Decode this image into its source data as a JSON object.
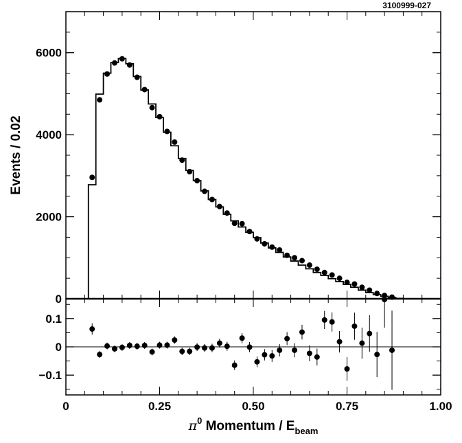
{
  "figure_id": "3100999-027",
  "chart_data": [
    {
      "type": "line",
      "xlabel": "π⁰ Momentum / E_beam",
      "ylabel": "Events / 0.02",
      "xlim": [
        0,
        1.0
      ],
      "ylim": [
        0,
        7000
      ],
      "yticks": [
        0,
        2000,
        4000,
        6000
      ],
      "ytick_labels": [
        "0",
        "2000",
        "4000",
        "6000"
      ],
      "grid": false,
      "bin_width": 0.02,
      "series": [
        {
          "style": "step-histogram",
          "bin_edges": [
            0.06,
            0.08,
            0.1,
            0.12,
            0.14,
            0.16,
            0.18,
            0.2,
            0.22,
            0.24,
            0.26,
            0.28,
            0.3,
            0.32,
            0.34,
            0.36,
            0.38,
            0.4,
            0.42,
            0.44,
            0.46,
            0.48,
            0.5,
            0.52,
            0.54,
            0.56,
            0.58,
            0.6,
            0.62,
            0.64,
            0.66,
            0.68,
            0.7,
            0.72,
            0.74,
            0.76,
            0.78,
            0.8,
            0.82,
            0.84,
            0.86,
            0.88,
            0.9
          ],
          "values": [
            2780,
            4990,
            5500,
            5760,
            5860,
            5730,
            5420,
            5090,
            4750,
            4420,
            4060,
            3730,
            3420,
            3130,
            2880,
            2630,
            2420,
            2240,
            2060,
            1900,
            1750,
            1620,
            1490,
            1360,
            1240,
            1130,
            1020,
            920,
            820,
            730,
            640,
            570,
            490,
            420,
            350,
            280,
            210,
            150,
            100,
            60,
            30,
            10
          ]
        },
        {
          "style": "markers",
          "x": [
            0.07,
            0.09,
            0.11,
            0.13,
            0.15,
            0.17,
            0.19,
            0.21,
            0.23,
            0.25,
            0.27,
            0.29,
            0.31,
            0.33,
            0.35,
            0.37,
            0.39,
            0.41,
            0.43,
            0.45,
            0.47,
            0.49,
            0.51,
            0.53,
            0.55,
            0.57,
            0.59,
            0.61,
            0.63,
            0.65,
            0.67,
            0.69,
            0.71,
            0.73,
            0.75,
            0.77,
            0.79,
            0.81,
            0.83,
            0.85,
            0.87
          ],
          "y": [
            2960,
            4850,
            5480,
            5750,
            5850,
            5700,
            5400,
            5100,
            4660,
            4440,
            4080,
            3820,
            3380,
            3100,
            2880,
            2620,
            2420,
            2250,
            2090,
            1840,
            1830,
            1640,
            1460,
            1340,
            1260,
            1190,
            1060,
            1000,
            930,
            820,
            720,
            640,
            580,
            500,
            400,
            360,
            280,
            210,
            130,
            80,
            40
          ]
        }
      ]
    },
    {
      "type": "scatter",
      "xlabel": "π⁰ Momentum / E_beam",
      "ylabel": "",
      "xlim": [
        0,
        1.0
      ],
      "ylim": [
        -0.17,
        0.17
      ],
      "xticks": [
        0,
        0.25,
        0.5,
        0.75,
        1.0
      ],
      "xtick_labels": [
        "0",
        "0.25",
        "0.50",
        "0.75",
        "1.00"
      ],
      "yticks": [
        -0.1,
        0,
        0.1
      ],
      "ytick_labels": [
        "−0.1",
        "0",
        "0.1"
      ],
      "reference_line": 0,
      "series": [
        {
          "style": "markers-with-errorbars",
          "x": [
            0.07,
            0.09,
            0.11,
            0.13,
            0.15,
            0.17,
            0.19,
            0.21,
            0.23,
            0.25,
            0.27,
            0.29,
            0.31,
            0.33,
            0.35,
            0.37,
            0.39,
            0.41,
            0.43,
            0.45,
            0.47,
            0.49,
            0.51,
            0.53,
            0.55,
            0.57,
            0.59,
            0.61,
            0.63,
            0.65,
            0.67,
            0.69,
            0.71,
            0.73,
            0.75,
            0.77,
            0.79,
            0.81,
            0.83,
            0.85,
            0.87
          ],
          "y": [
            0.063,
            -0.027,
            0.003,
            -0.007,
            -0.002,
            0.005,
            0.002,
            0.005,
            -0.018,
            0.006,
            0.006,
            0.024,
            -0.016,
            -0.016,
            -0.001,
            -0.004,
            -0.004,
            0.013,
            0.002,
            -0.065,
            0.031,
            -0.001,
            -0.053,
            -0.028,
            -0.032,
            -0.012,
            0.029,
            -0.012,
            0.052,
            -0.023,
            -0.036,
            0.095,
            0.088,
            0.018,
            -0.078,
            0.073,
            0.013,
            0.047,
            -0.027,
            0.168,
            -0.012
          ],
          "err": [
            0.02,
            0.012,
            0.012,
            0.012,
            0.012,
            0.012,
            0.012,
            0.012,
            0.012,
            0.012,
            0.012,
            0.013,
            0.013,
            0.013,
            0.014,
            0.014,
            0.015,
            0.016,
            0.016,
            0.017,
            0.018,
            0.018,
            0.019,
            0.02,
            0.021,
            0.022,
            0.023,
            0.025,
            0.026,
            0.028,
            0.03,
            0.032,
            0.034,
            0.038,
            0.042,
            0.048,
            0.055,
            0.065,
            0.08,
            0.1,
            0.14
          ]
        }
      ]
    }
  ]
}
